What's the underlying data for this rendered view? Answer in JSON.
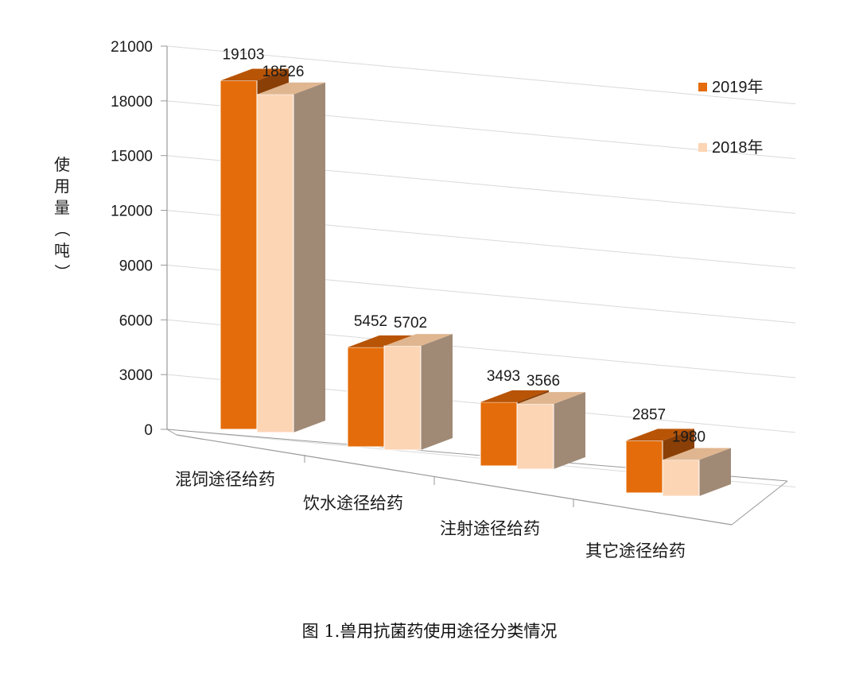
{
  "caption": "图 1.兽用抗菌药使用途径分类情况",
  "chart_data": {
    "type": "bar",
    "ylabel": "使用量（吨）",
    "ylim": [
      0,
      21000
    ],
    "yticks": [
      0,
      3000,
      6000,
      9000,
      12000,
      15000,
      18000,
      21000
    ],
    "categories": [
      "混饲途径给药",
      "饮水途径给药",
      "注射途径给药",
      "其它途径给药"
    ],
    "series": [
      {
        "name": "2019年",
        "values": [
          19103,
          5452,
          3493,
          2857
        ],
        "color": "#e46c0a"
      },
      {
        "name": "2018年",
        "values": [
          18526,
          5702,
          3566,
          1980
        ],
        "color": "#fcd5b5"
      }
    ],
    "legend_position": "top-right",
    "grid": true
  }
}
